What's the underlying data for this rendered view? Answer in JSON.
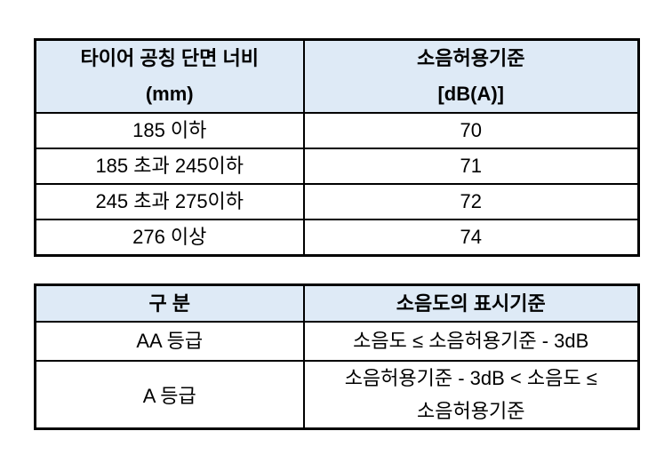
{
  "colors": {
    "header_bg": "#DEEAF6",
    "border": "#000000",
    "text": "#000000",
    "page_bg": "#ffffff"
  },
  "table1": {
    "header": {
      "col1_lines": [
        "타이어 공칭 단면 너비",
        "(mm)"
      ],
      "col2_lines": [
        "소음허용기준",
        "[dB(A)]"
      ]
    },
    "rows": [
      {
        "label": "185 이하",
        "value": "70"
      },
      {
        "label": "185 초과 245이하",
        "value": "71"
      },
      {
        "label": "245 초과 275이하",
        "value": "72"
      },
      {
        "label": "276 이상",
        "value": "74"
      }
    ]
  },
  "table2": {
    "header": {
      "col1": "구 분",
      "col2": "소음도의 표시기준"
    },
    "rows": [
      {
        "label": "AA 등급",
        "value_lines": [
          "소음도 ≤ 소음허용기준 - 3dB"
        ]
      },
      {
        "label": "A 등급",
        "value_lines": [
          "소음허용기준 - 3dB < 소음도 ≤",
          "소음허용기준"
        ]
      }
    ]
  }
}
